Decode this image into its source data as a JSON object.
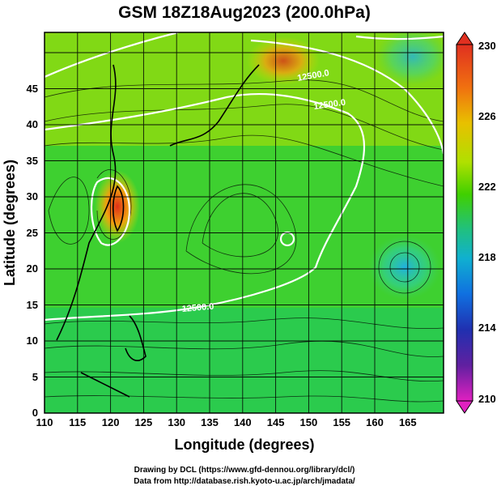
{
  "title": "GSM 18Z18Aug2023 (200.0hPa)",
  "xlabel": "Longitude (degrees)",
  "ylabel": "Latitude  (degrees)",
  "x_ticks": [
    "110",
    "115",
    "120",
    "125",
    "130",
    "135",
    "140",
    "145",
    "150",
    "155",
    "160",
    "165"
  ],
  "y_ticks": [
    "0",
    "5",
    "10",
    "15",
    "20",
    "25",
    "30",
    "35",
    "40",
    "45"
  ],
  "colorbar": {
    "ticks": [
      "230",
      "226",
      "222",
      "218",
      "214",
      "210"
    ],
    "colors": [
      "#e03020",
      "#f08010",
      "#e8c000",
      "#b8e000",
      "#40d000",
      "#20c060",
      "#10c0b0",
      "#1080e0",
      "#2040c0",
      "#2020a0",
      "#8020a0",
      "#e020c0"
    ]
  },
  "contour_labels": [
    "12500.0",
    "12500.0",
    "12500.0"
  ],
  "credits": [
    "Drawing by DCL (https://www.gfd-dennou.org/library/dcl/)",
    "Data from http://database.rish.kyoto-u.ac.jp/arch/jmadata/"
  ],
  "chart_data": {
    "type": "heatmap",
    "title": "GSM 18Z18Aug2023 (200.0hPa)",
    "xlabel": "Longitude (degrees)",
    "ylabel": "Latitude  (degrees)",
    "xlim": [
      110,
      170
    ],
    "ylim": [
      0,
      50
    ],
    "grid": true,
    "colorbar_range": [
      210,
      230
    ],
    "colorbar_ticks": [
      230,
      226,
      222,
      218,
      214,
      210
    ],
    "contour_level": 12500.0
  }
}
